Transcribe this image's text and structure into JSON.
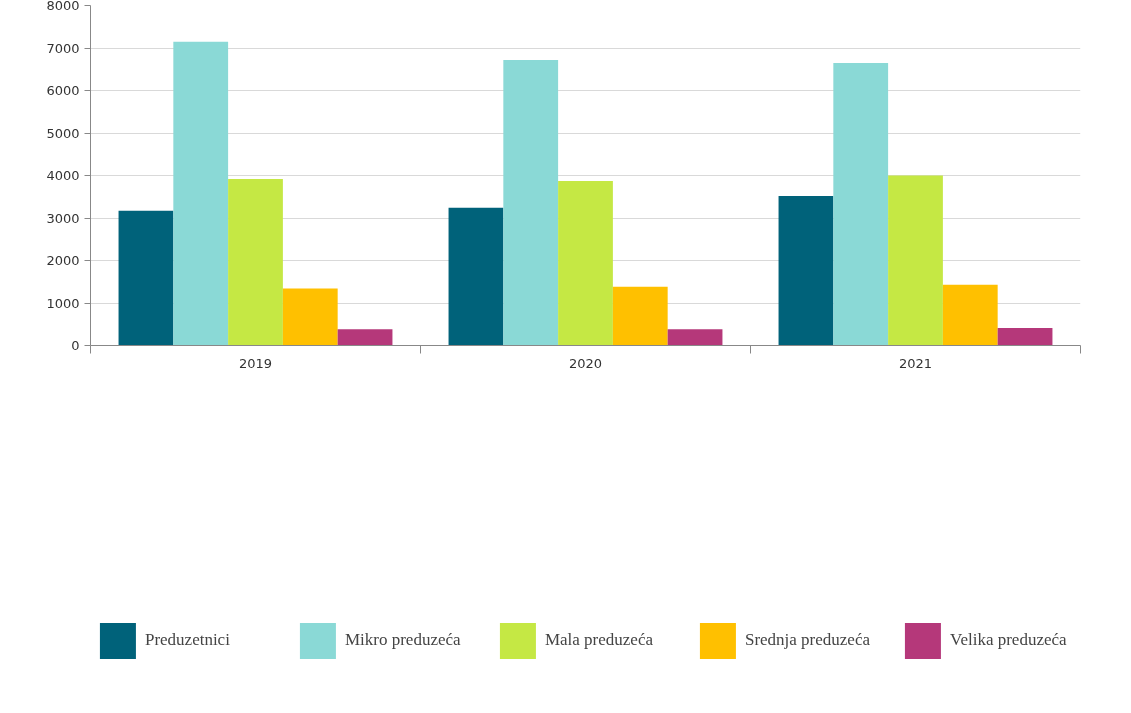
{
  "chart_data": {
    "type": "bar",
    "categories": [
      "2019",
      "2020",
      "2021"
    ],
    "series": [
      {
        "name": "Preduzetnici",
        "color": "#00627a",
        "values": [
          3170,
          3240,
          3520
        ]
      },
      {
        "name": "Mikro preduzeća",
        "color": "#8ad9d6",
        "values": [
          7150,
          6720,
          6650
        ]
      },
      {
        "name": "Mala preduzeća",
        "color": "#c5e844",
        "values": [
          3920,
          3870,
          4000
        ]
      },
      {
        "name": "Srednja preduzeća",
        "color": "#ffc000",
        "values": [
          1340,
          1380,
          1430
        ]
      },
      {
        "name": "Velika preduzeća",
        "color": "#b5387a",
        "values": [
          380,
          380,
          410
        ]
      }
    ],
    "ylim": [
      0,
      8000
    ],
    "yticks": [
      0,
      1000,
      2000,
      3000,
      4000,
      5000,
      6000,
      7000,
      8000
    ],
    "grid": "y",
    "legend": "bottom"
  }
}
